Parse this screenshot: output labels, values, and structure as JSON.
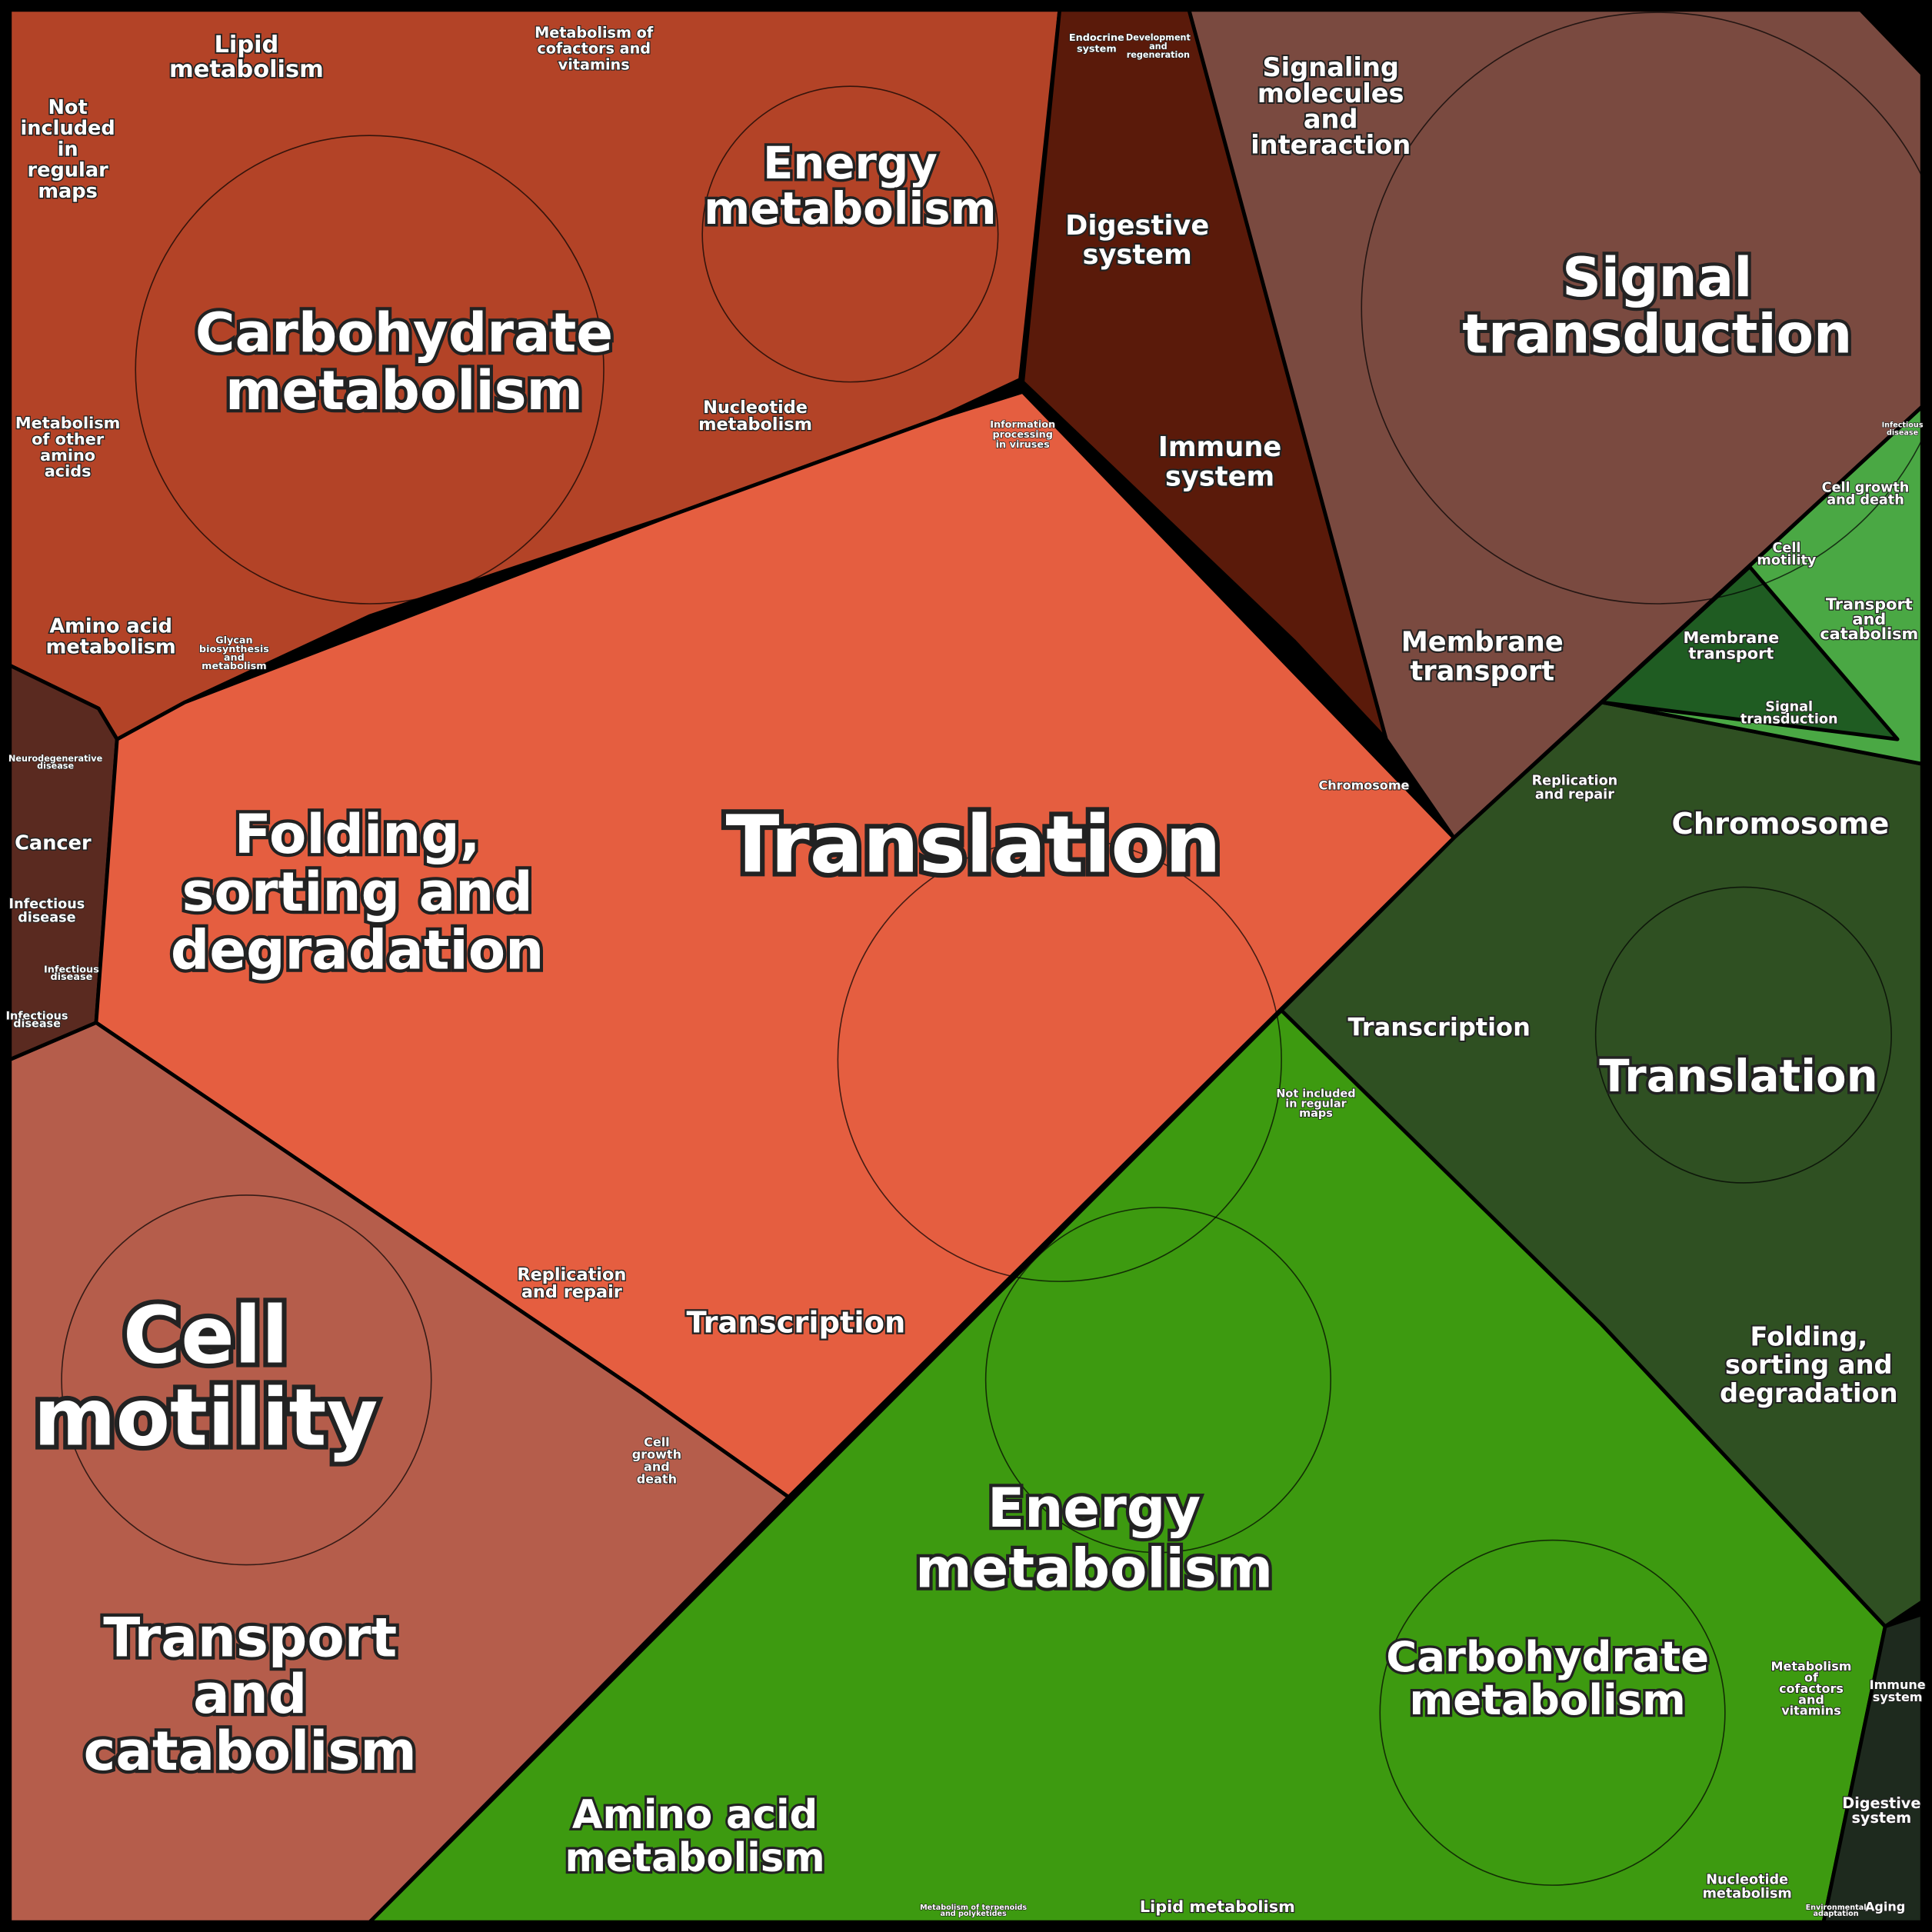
{
  "labels": [
    {
      "lines": [
        "Lipid",
        "metabolism"
      ]
    },
    {
      "lines": [
        "Metabolism of",
        "cofactors and",
        "vitamins"
      ]
    },
    {
      "lines": [
        "Not",
        "included",
        "in",
        "regular",
        "maps"
      ]
    },
    {
      "lines": [
        "Energy",
        "metabolism"
      ]
    },
    {
      "lines": [
        "Carbohydrate",
        "metabolism"
      ]
    },
    {
      "lines": [
        "Nucleotide",
        "metabolism"
      ]
    },
    {
      "lines": [
        "Information",
        "processing",
        "in viruses"
      ]
    },
    {
      "lines": [
        "Endocrine",
        "system"
      ]
    },
    {
      "lines": [
        "Development",
        "and",
        "regeneration"
      ]
    },
    {
      "lines": [
        "Digestive",
        "system"
      ]
    },
    {
      "lines": [
        "Immune",
        "system"
      ]
    },
    {
      "lines": [
        "Signaling",
        "molecules",
        "and",
        "interaction"
      ]
    },
    {
      "lines": [
        "Signal",
        "transduction"
      ]
    },
    {
      "lines": [
        "Membrane",
        "transport"
      ]
    },
    {
      "lines": [
        "Metabolism",
        "of other",
        "amino",
        "acids"
      ]
    },
    {
      "lines": [
        "Amino acid",
        "metabolism"
      ]
    },
    {
      "lines": [
        "Glycan",
        "biosynthesis",
        "and",
        "metabolism"
      ]
    },
    {
      "lines": [
        "Neurodegenerative",
        "disease"
      ]
    },
    {
      "lines": [
        "Cancer"
      ]
    },
    {
      "lines": [
        "Infectious",
        "disease"
      ]
    },
    {
      "lines": [
        "Infectious",
        "disease"
      ]
    },
    {
      "lines": [
        "Infectious",
        "disease"
      ]
    },
    {
      "lines": [
        "Folding,",
        "sorting and",
        "degradation"
      ]
    },
    {
      "lines": [
        "Translation"
      ]
    },
    {
      "lines": [
        "Chromosome"
      ]
    },
    {
      "lines": [
        "Replication",
        "and repair"
      ]
    },
    {
      "lines": [
        "Transcription"
      ]
    },
    {
      "lines": [
        "Cell",
        "motility"
      ]
    },
    {
      "lines": [
        "Transport",
        "and",
        "catabolism"
      ]
    },
    {
      "lines": [
        "Cell",
        "growth",
        "and",
        "death"
      ]
    },
    {
      "lines": [
        "Replication",
        "and repair"
      ]
    },
    {
      "lines": [
        "Chromosome"
      ]
    },
    {
      "lines": [
        "Transcription"
      ]
    },
    {
      "lines": [
        "Translation"
      ]
    },
    {
      "lines": [
        "Folding,",
        "sorting and",
        "degradation"
      ]
    },
    {
      "lines": [
        "Membrane",
        "transport"
      ]
    },
    {
      "lines": [
        "Signal",
        "transduction"
      ]
    },
    {
      "lines": [
        "Cell growth",
        "and death"
      ]
    },
    {
      "lines": [
        "Cell",
        "motility"
      ]
    },
    {
      "lines": [
        "Transport",
        "and",
        "catabolism"
      ]
    },
    {
      "lines": [
        "Infectious",
        "disease"
      ]
    },
    {
      "lines": [
        "Not included",
        "in regular",
        "maps"
      ]
    },
    {
      "lines": [
        "Energy",
        "metabolism"
      ]
    },
    {
      "lines": [
        "Carbohydrate",
        "metabolism"
      ]
    },
    {
      "lines": [
        "Amino acid",
        "metabolism"
      ]
    },
    {
      "lines": [
        "Lipid metabolism"
      ]
    },
    {
      "lines": [
        "Metabolism",
        "of",
        "cofactors",
        "and",
        "vitamins"
      ]
    },
    {
      "lines": [
        "Nucleotide",
        "metabolism"
      ]
    },
    {
      "lines": [
        "Immune",
        "system"
      ]
    },
    {
      "lines": [
        "Digestive",
        "system"
      ]
    },
    {
      "lines": [
        "Aging"
      ]
    },
    {
      "lines": [
        "Environmental",
        "adaptation"
      ]
    },
    {
      "lines": [
        "Metabolism of terpenoids",
        "and polyketides"
      ]
    }
  ]
}
